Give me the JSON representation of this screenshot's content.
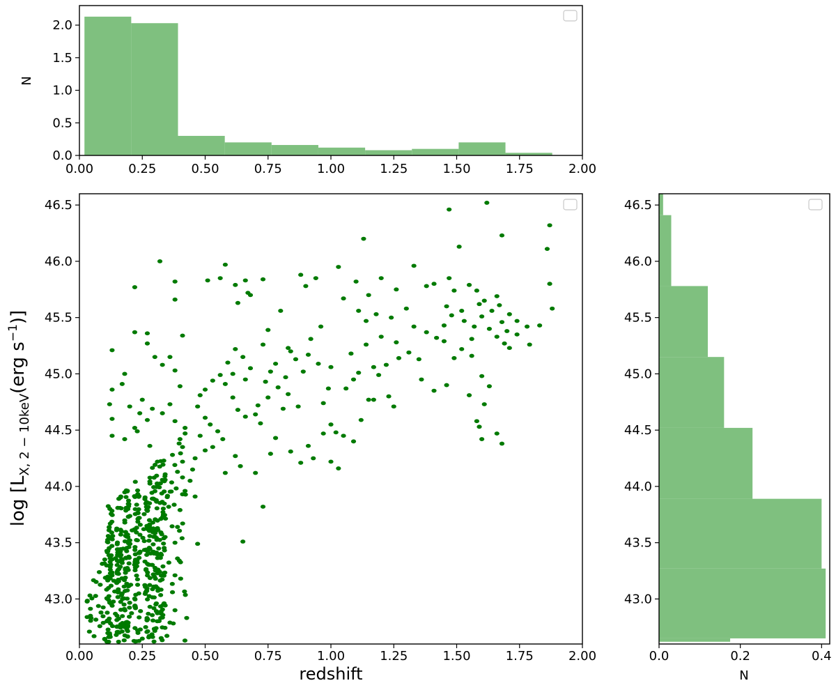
{
  "chart_data": [
    {
      "id": "top",
      "type": "bar",
      "xlabel": "",
      "ylabel": "N",
      "xlim": [
        0.0,
        2.0
      ],
      "ylim": [
        0.0,
        2.3
      ],
      "x_ticks": [
        "0.00",
        "0.25",
        "0.50",
        "0.75",
        "1.00",
        "1.25",
        "1.50",
        "1.75",
        "2.00"
      ],
      "y_ticks": [
        "0.0",
        "0.5",
        "1.0",
        "1.5",
        "2.0"
      ],
      "bin_edges": [
        0.02,
        0.206,
        0.392,
        0.578,
        0.764,
        0.95,
        1.136,
        1.322,
        1.508,
        1.694,
        1.88
      ],
      "values": [
        2.13,
        2.03,
        0.3,
        0.2,
        0.16,
        0.12,
        0.08,
        0.1,
        0.2,
        0.04
      ],
      "color": "#7fc07f",
      "legend": "top-right (empty)"
    },
    {
      "id": "main",
      "type": "scatter",
      "xlabel": "redshift",
      "ylabel": "log [L",
      "ylabel_sub": "X, 2 − 10keV",
      "ylabel_paren": "(erg s",
      "ylabel_sup": "−1",
      "ylabel_end": ")]",
      "xlim": [
        0.0,
        2.0
      ],
      "ylim": [
        42.6,
        46.6
      ],
      "x_ticks": [
        "0.00",
        "0.25",
        "0.50",
        "0.75",
        "1.00",
        "1.25",
        "1.50",
        "1.75",
        "2.00"
      ],
      "y_ticks": [
        "43.0",
        "43.5",
        "44.0",
        "44.5",
        "45.0",
        "45.5",
        "46.0",
        "46.5"
      ],
      "color": "#007a00",
      "legend": "top-right (empty)",
      "points": [
        [
          1.62,
          46.52
        ],
        [
          1.47,
          46.46
        ],
        [
          1.87,
          46.32
        ],
        [
          1.68,
          46.23
        ],
        [
          1.86,
          46.11
        ],
        [
          1.13,
          46.2
        ],
        [
          1.51,
          46.13
        ],
        [
          0.32,
          46.0
        ],
        [
          0.58,
          45.97
        ],
        [
          0.38,
          45.82
        ],
        [
          0.22,
          45.77
        ],
        [
          0.56,
          45.85
        ],
        [
          0.51,
          45.83
        ],
        [
          0.38,
          45.66
        ],
        [
          0.66,
          45.83
        ],
        [
          0.73,
          45.84
        ],
        [
          0.67,
          45.72
        ],
        [
          0.62,
          45.79
        ],
        [
          0.68,
          45.7
        ],
        [
          0.63,
          45.63
        ],
        [
          0.88,
          45.88
        ],
        [
          0.9,
          45.78
        ],
        [
          0.94,
          45.85
        ],
        [
          1.03,
          45.95
        ],
        [
          1.1,
          45.82
        ],
        [
          1.15,
          45.7
        ],
        [
          1.2,
          45.85
        ],
        [
          1.26,
          45.75
        ],
        [
          1.33,
          45.96
        ],
        [
          1.38,
          45.78
        ],
        [
          1.47,
          45.85
        ],
        [
          1.49,
          45.74
        ],
        [
          1.41,
          45.8
        ],
        [
          1.55,
          45.79
        ],
        [
          1.58,
          45.74
        ],
        [
          1.61,
          45.65
        ],
        [
          1.66,
          45.69
        ],
        [
          1.67,
          45.61
        ],
        [
          1.71,
          45.53
        ],
        [
          1.74,
          45.47
        ],
        [
          1.78,
          45.42
        ],
        [
          1.83,
          45.43
        ],
        [
          1.87,
          45.8
        ],
        [
          1.88,
          45.58
        ],
        [
          1.74,
          45.35
        ],
        [
          1.79,
          45.26
        ],
        [
          1.64,
          45.56
        ],
        [
          1.59,
          45.62
        ],
        [
          1.52,
          45.56
        ],
        [
          1.53,
          45.47
        ],
        [
          1.48,
          45.52
        ],
        [
          1.45,
          45.43
        ],
        [
          1.46,
          45.6
        ],
        [
          1.57,
          45.42
        ],
        [
          1.6,
          45.51
        ],
        [
          1.63,
          45.4
        ],
        [
          1.68,
          45.46
        ],
        [
          1.7,
          45.38
        ],
        [
          1.66,
          45.33
        ],
        [
          1.69,
          45.27
        ],
        [
          1.71,
          45.23
        ],
        [
          1.56,
          45.31
        ],
        [
          1.52,
          45.22
        ],
        [
          1.49,
          45.14
        ],
        [
          1.45,
          45.29
        ],
        [
          1.42,
          45.32
        ],
        [
          1.38,
          45.37
        ],
        [
          1.35,
          45.13
        ],
        [
          1.31,
          45.19
        ],
        [
          1.27,
          45.14
        ],
        [
          1.22,
          45.08
        ],
        [
          1.19,
          44.99
        ],
        [
          1.17,
          45.06
        ],
        [
          1.23,
          44.8
        ],
        [
          1.17,
          44.77
        ],
        [
          1.25,
          44.71
        ],
        [
          1.15,
          44.77
        ],
        [
          1.12,
          44.59
        ],
        [
          1.09,
          44.4
        ],
        [
          1.05,
          44.45
        ],
        [
          1.02,
          44.48
        ],
        [
          1.0,
          44.55
        ],
        [
          0.97,
          44.74
        ],
        [
          0.99,
          44.87
        ],
        [
          1.06,
          44.87
        ],
        [
          1.11,
          45.01
        ],
        [
          1.09,
          44.95
        ],
        [
          1.0,
          45.06
        ],
        [
          0.95,
          45.09
        ],
        [
          0.91,
          45.17
        ],
        [
          0.86,
          45.13
        ],
        [
          0.89,
          45.02
        ],
        [
          0.82,
          44.97
        ],
        [
          0.78,
          45.09
        ],
        [
          0.76,
          45.02
        ],
        [
          0.74,
          44.93
        ],
        [
          0.79,
          44.88
        ],
        [
          0.83,
          44.82
        ],
        [
          0.87,
          44.71
        ],
        [
          0.81,
          44.69
        ],
        [
          0.75,
          44.79
        ],
        [
          0.71,
          44.72
        ],
        [
          0.7,
          44.64
        ],
        [
          0.72,
          44.56
        ],
        [
          0.66,
          44.62
        ],
        [
          0.63,
          44.68
        ],
        [
          0.61,
          44.79
        ],
        [
          0.58,
          44.91
        ],
        [
          0.56,
          44.99
        ],
        [
          0.59,
          45.1
        ],
        [
          0.62,
          45.22
        ],
        [
          0.65,
          45.15
        ],
        [
          0.68,
          45.05
        ],
        [
          0.66,
          44.95
        ],
        [
          0.61,
          45.0
        ],
        [
          0.53,
          44.94
        ],
        [
          0.5,
          44.86
        ],
        [
          0.48,
          44.81
        ],
        [
          0.47,
          44.71
        ],
        [
          0.5,
          44.61
        ],
        [
          0.52,
          44.55
        ],
        [
          0.55,
          44.49
        ],
        [
          0.57,
          44.42
        ],
        [
          0.53,
          44.35
        ],
        [
          0.5,
          44.32
        ],
        [
          0.48,
          44.45
        ],
        [
          0.46,
          44.25
        ],
        [
          0.45,
          44.15
        ],
        [
          0.44,
          44.05
        ],
        [
          0.46,
          43.91
        ],
        [
          0.42,
          43.96
        ],
        [
          0.47,
          43.49
        ],
        [
          0.65,
          43.51
        ],
        [
          0.73,
          43.82
        ],
        [
          0.58,
          44.12
        ],
        [
          0.62,
          44.27
        ],
        [
          0.64,
          44.18
        ],
        [
          0.7,
          44.12
        ],
        [
          0.76,
          44.29
        ],
        [
          0.78,
          44.43
        ],
        [
          0.84,
          44.31
        ],
        [
          0.88,
          44.21
        ],
        [
          0.91,
          44.36
        ],
        [
          0.93,
          44.25
        ],
        [
          0.97,
          44.47
        ],
        [
          1.0,
          44.22
        ],
        [
          1.03,
          44.16
        ],
        [
          0.8,
          45.56
        ],
        [
          0.75,
          45.39
        ],
        [
          0.84,
          45.2
        ],
        [
          0.73,
          45.26
        ],
        [
          0.83,
          45.23
        ],
        [
          0.92,
          45.31
        ],
        [
          0.96,
          45.42
        ],
        [
          1.05,
          45.67
        ],
        [
          1.11,
          45.56
        ],
        [
          1.14,
          45.47
        ],
        [
          1.18,
          45.53
        ],
        [
          1.24,
          45.5
        ],
        [
          1.3,
          45.58
        ],
        [
          1.33,
          45.42
        ],
        [
          1.08,
          45.18
        ],
        [
          1.14,
          45.26
        ],
        [
          1.2,
          45.33
        ],
        [
          1.26,
          45.28
        ],
        [
          1.36,
          44.95
        ],
        [
          1.41,
          44.85
        ],
        [
          1.46,
          44.9
        ],
        [
          1.58,
          44.58
        ],
        [
          1.59,
          44.53
        ],
        [
          1.6,
          44.42
        ],
        [
          1.68,
          44.38
        ],
        [
          1.66,
          44.47
        ],
        [
          1.56,
          45.16
        ],
        [
          1.6,
          44.98
        ],
        [
          1.63,
          44.89
        ],
        [
          1.61,
          44.73
        ],
        [
          1.55,
          44.81
        ],
        [
          0.13,
          45.21
        ],
        [
          0.22,
          45.37
        ],
        [
          0.27,
          45.36
        ],
        [
          0.27,
          45.27
        ],
        [
          0.3,
          45.15
        ],
        [
          0.33,
          45.08
        ],
        [
          0.36,
          45.15
        ],
        [
          0.41,
          45.34
        ],
        [
          0.38,
          45.03
        ],
        [
          0.4,
          44.89
        ],
        [
          0.36,
          44.73
        ],
        [
          0.33,
          44.65
        ],
        [
          0.29,
          44.69
        ],
        [
          0.27,
          44.59
        ],
        [
          0.24,
          44.65
        ],
        [
          0.2,
          44.71
        ],
        [
          0.17,
          44.91
        ],
        [
          0.18,
          45.0
        ],
        [
          0.13,
          44.86
        ],
        [
          0.12,
          44.73
        ],
        [
          0.13,
          44.6
        ],
        [
          0.13,
          44.45
        ],
        [
          0.18,
          44.42
        ],
        [
          0.22,
          44.52
        ],
        [
          0.25,
          44.77
        ],
        [
          0.23,
          44.49
        ],
        [
          0.28,
          44.36
        ],
        [
          0.31,
          44.22
        ],
        [
          0.34,
          44.09
        ],
        [
          0.37,
          44.28
        ],
        [
          0.39,
          44.13
        ],
        [
          0.4,
          44.42
        ],
        [
          0.41,
          44.35
        ],
        [
          0.41,
          44.22
        ],
        [
          0.41,
          44.08
        ],
        [
          0.41,
          43.93
        ],
        [
          0.4,
          43.79
        ],
        [
          0.39,
          43.64
        ],
        [
          0.38,
          43.5
        ],
        [
          0.39,
          43.36
        ],
        [
          0.38,
          43.21
        ],
        [
          0.37,
          43.06
        ],
        [
          0.38,
          42.9
        ],
        [
          0.36,
          42.79
        ],
        [
          0.38,
          44.58
        ],
        [
          0.42,
          44.52
        ]
      ]
    },
    {
      "id": "right",
      "type": "bar",
      "orientation": "horizontal",
      "xlabel": "N",
      "ylabel": "",
      "xlim": [
        0.0,
        0.42
      ],
      "ylim": [
        42.6,
        46.6
      ],
      "x_ticks": [
        "0.0",
        "0.2",
        "0.4"
      ],
      "y_ticks": [
        "43.0",
        "43.5",
        "44.0",
        "44.5",
        "45.0",
        "45.5",
        "46.0",
        "46.5"
      ],
      "bin_edges": [
        42.62,
        42.65,
        43.27,
        43.89,
        44.52,
        45.15,
        45.78,
        46.41,
        46.62
      ],
      "values": [
        0.175,
        0.41,
        0.4,
        0.23,
        0.16,
        0.12,
        0.03,
        0.01
      ],
      "color": "#7fc07f",
      "legend": "top-right (empty)"
    }
  ]
}
